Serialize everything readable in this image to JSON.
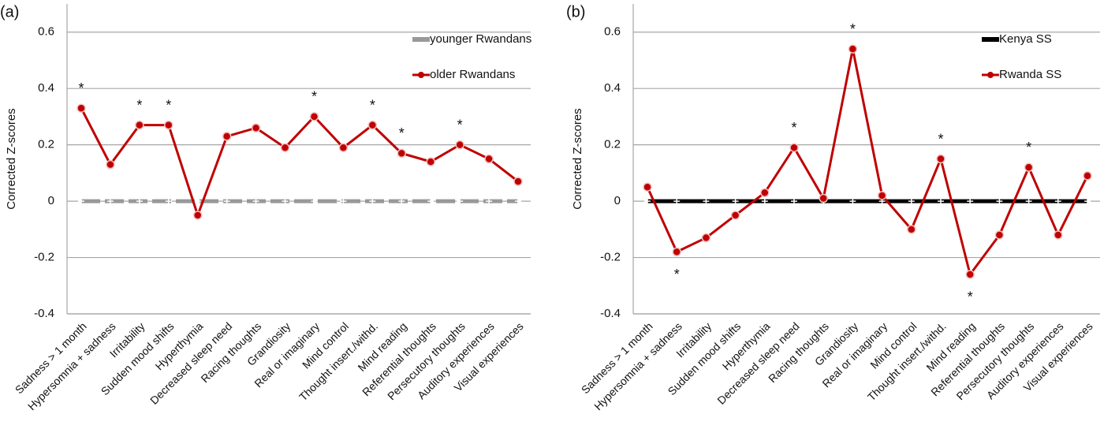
{
  "chart_data": [
    {
      "type": "line",
      "panel_label": "(a)",
      "y_label": "Corrected Z-scores",
      "categories": [
        "Sadness > 1 month",
        "Hypersomnia + sadness",
        "Irritability",
        "Sudden mood shifts",
        "Hyperthymia",
        "Decreased sleep need",
        "Racing thoughts",
        "Grandiosity",
        "Real or imaginary",
        "Mind control",
        "Thought insert./withd.",
        "Mind reading",
        "Referential thoughts",
        "Persecutory thoughts",
        "Auditory experiences",
        "Visual experiences"
      ],
      "series": [
        {
          "name": "younger Rwandans",
          "color": "#999999",
          "values": [
            0,
            0,
            0,
            0,
            0,
            0,
            0,
            0,
            0,
            0,
            0,
            0,
            0,
            0,
            0,
            0
          ]
        },
        {
          "name": "older Rwandans",
          "color": "#c00000",
          "values": [
            0.33,
            0.13,
            0.27,
            0.27,
            -0.05,
            0.23,
            0.26,
            0.19,
            0.3,
            0.19,
            0.27,
            0.17,
            0.14,
            0.2,
            0.15,
            0.07
          ]
        }
      ],
      "annotations": [
        "*",
        null,
        "*",
        "*",
        null,
        null,
        null,
        null,
        "*",
        null,
        "*",
        "*",
        null,
        "*",
        null,
        null
      ],
      "ylim": [
        -0.4,
        0.7
      ],
      "yticks": [
        -0.4,
        -0.2,
        0,
        0.2,
        0.4,
        0.6
      ],
      "grid": true,
      "legend": "upper right"
    },
    {
      "type": "line",
      "panel_label": "(b)",
      "y_label": "Corrected Z-scores",
      "categories": [
        "Sadness > 1 month",
        "Hypersomnia + sadness",
        "Irritability",
        "Sudden mood shifts",
        "Hyperthymia",
        "Decreased sleep need",
        "Racing thoughts",
        "Grandiosity",
        "Real or imaginary",
        "Mind control",
        "Thought insert./withd.",
        "Mind reading",
        "Referential thoughts",
        "Persecutory thoughts",
        "Auditory experiences",
        "Visual experiences"
      ],
      "series": [
        {
          "name": "Kenya SS",
          "color": "#000000",
          "values": [
            0,
            0,
            0,
            0,
            0,
            0,
            0,
            0,
            0,
            0,
            0,
            0,
            0,
            0,
            0,
            0
          ]
        },
        {
          "name": "Rwanda SS",
          "color": "#c00000",
          "values": [
            0.05,
            -0.18,
            -0.13,
            -0.05,
            0.03,
            0.19,
            0.01,
            0.54,
            0.02,
            -0.1,
            0.15,
            -0.26,
            -0.12,
            0.12,
            -0.12,
            0.09
          ]
        }
      ],
      "annotations": [
        null,
        "*",
        null,
        null,
        null,
        "*",
        null,
        "*",
        null,
        null,
        "*",
        "*",
        null,
        "*",
        null,
        null
      ],
      "ylim": [
        -0.4,
        0.7
      ],
      "yticks": [
        -0.4,
        -0.2,
        0,
        0.2,
        0.4,
        0.6
      ],
      "grid": true,
      "legend": "upper right"
    }
  ]
}
